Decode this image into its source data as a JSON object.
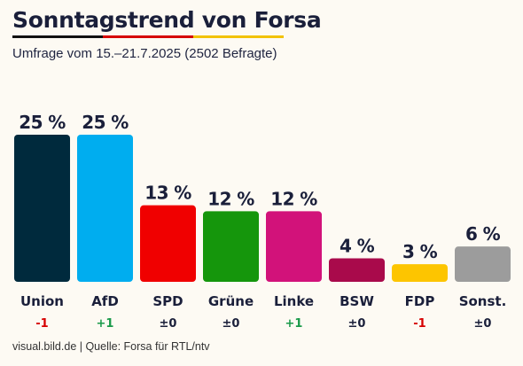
{
  "header": {
    "title": "Sonntagstrend von Forsa",
    "subtitle": "Umfrage vom 15.–21.7.2025 (2502 Befragte)"
  },
  "footer": {
    "text": "visual.bild.de | Quelle: Forsa für RTL/ntv"
  },
  "colors": {
    "positive": "#1a9a4a",
    "negative": "#d60000",
    "neutral": "#1a1f3a"
  },
  "chart_data": {
    "type": "bar",
    "categories": [
      "Union",
      "AfD",
      "SPD",
      "Grüne",
      "Linke",
      "BSW",
      "FDP",
      "Sonst."
    ],
    "values": [
      25,
      25,
      13,
      12,
      12,
      4,
      3,
      6
    ],
    "value_labels": [
      "25 %",
      "25 %",
      "13 %",
      "12 %",
      "12 %",
      "4 %",
      "3 %",
      "6 %"
    ],
    "changes": [
      "-1",
      "+1",
      "±0",
      "±0",
      "+1",
      "±0",
      "-1",
      "±0"
    ],
    "bar_colors": [
      "#002a3d",
      "#00adef",
      "#f00000",
      "#15960c",
      "#d2127a",
      "#a90a4b",
      "#fdc500",
      "#9c9c9c"
    ],
    "ylim": [
      0,
      25
    ],
    "grid": false,
    "legend": "none"
  }
}
